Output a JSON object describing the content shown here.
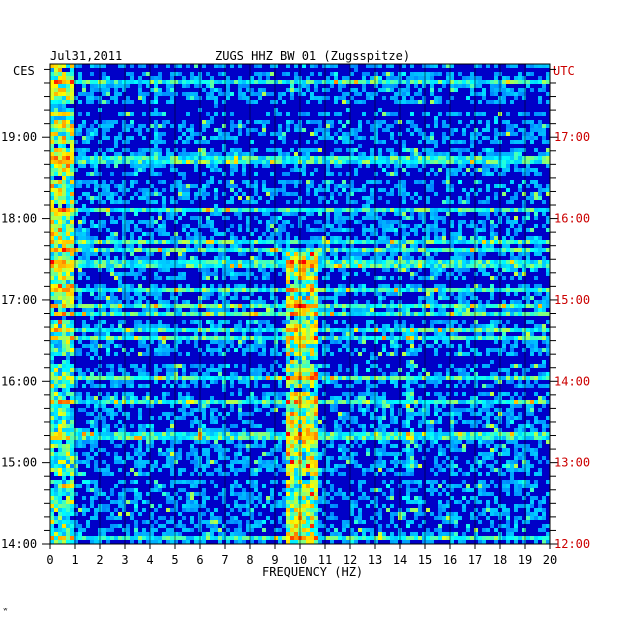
{
  "header": {
    "date": "Jul31,2011",
    "station": "ZUGS HHZ BW 01 (Zugsspitze)",
    "left_tz": "CES",
    "right_tz": "UTC"
  },
  "chart_data": {
    "type": "heatmap",
    "title": "ZUGS HHZ BW 01 (Zugsspitze)",
    "date": "Jul31,2011",
    "xlabel": "FREQUENCY (HZ)",
    "xlim": [
      0,
      20
    ],
    "x_ticks": [
      "0",
      "1",
      "2",
      "3",
      "4",
      "5",
      "6",
      "7",
      "8",
      "9",
      "10",
      "11",
      "12",
      "13",
      "14",
      "15",
      "16",
      "17",
      "18",
      "19",
      "20"
    ],
    "left_axis": {
      "label": "CES",
      "ticks": [
        "19:00",
        "18:00",
        "17:00",
        "16:00",
        "15:00",
        "14:00"
      ],
      "range_hours": [
        14,
        19.9
      ]
    },
    "right_axis": {
      "label": "UTC",
      "ticks": [
        "17:00",
        "16:00",
        "15:00",
        "14:00",
        "13:00",
        "12:00"
      ],
      "range_hours": [
        12,
        17.9
      ]
    },
    "time_direction": "oldest at bottom, newest at top",
    "colormap": [
      "#00007f",
      "#0000ff",
      "#0080ff",
      "#00ffff",
      "#ffff00",
      "#ff8000",
      "#ff0000"
    ],
    "background_level": "low (dark/medium blue)",
    "notable_features": [
      {
        "frequency_hz": [
          0,
          1
        ],
        "description": "elevated energy at lowest frequencies, stronger in later hours"
      },
      {
        "frequency_hz": [
          9.5,
          10.8
        ],
        "description": "persistent band of elevated energy from 14:00 to 17:30 CES"
      },
      {
        "frequency_hz": [
          14.2,
          14.5
        ],
        "description": "narrow line 14:30-16:30 CES"
      },
      {
        "frequency_hz": [
          16,
          16.1
        ],
        "description": "narrow line 14:00-16:00 CES"
      }
    ],
    "colors": {
      "left_axis_text": "#000000",
      "right_axis_text": "#cc0000",
      "frame": "#000000",
      "grid": "#000000"
    }
  }
}
